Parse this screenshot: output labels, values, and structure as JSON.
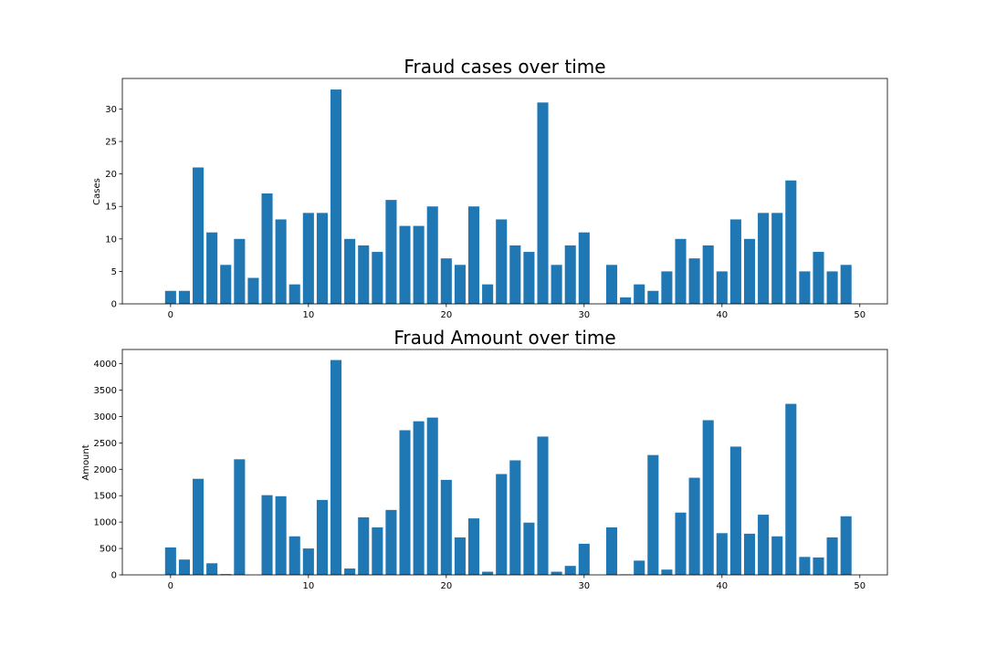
{
  "chart_data": [
    {
      "type": "bar",
      "title": "Fraud cases over time",
      "xlabel": "",
      "ylabel": "Cases",
      "xlim": [
        -3.5,
        52
      ],
      "ylim": [
        0,
        34.7
      ],
      "xticks": [
        0,
        10,
        20,
        30,
        40,
        50
      ],
      "yticks": [
        0,
        5,
        10,
        15,
        20,
        25,
        30
      ],
      "grid": false,
      "color": "#1f77b4",
      "x": [
        0,
        1,
        2,
        3,
        4,
        5,
        6,
        7,
        8,
        9,
        10,
        11,
        12,
        13,
        14,
        15,
        16,
        17,
        18,
        19,
        20,
        21,
        22,
        23,
        24,
        25,
        26,
        27,
        28,
        29,
        30,
        31,
        32,
        33,
        34,
        35,
        36,
        37,
        38,
        39,
        40,
        41,
        42,
        43,
        44,
        45,
        46,
        47,
        48,
        49
      ],
      "values": [
        2,
        2,
        21,
        11,
        6,
        10,
        4,
        17,
        13,
        3,
        14,
        14,
        33,
        10,
        9,
        8,
        16,
        12,
        12,
        15,
        7,
        6,
        15,
        3,
        13,
        9,
        8,
        31,
        6,
        9,
        11,
        0,
        6,
        1,
        3,
        2,
        5,
        10,
        7,
        9,
        5,
        13,
        10,
        14,
        14,
        19,
        5,
        8,
        5,
        6
      ]
    },
    {
      "type": "bar",
      "title": "Fraud Amount over time",
      "xlabel": "",
      "ylabel": "Amount",
      "xlim": [
        -3.5,
        52
      ],
      "ylim": [
        0,
        4270
      ],
      "xticks": [
        0,
        10,
        20,
        30,
        40,
        50
      ],
      "yticks": [
        0,
        500,
        1000,
        1500,
        2000,
        2500,
        3000,
        3500,
        4000
      ],
      "grid": false,
      "color": "#1f77b4",
      "x": [
        0,
        1,
        2,
        3,
        4,
        5,
        6,
        7,
        8,
        9,
        10,
        11,
        12,
        13,
        14,
        15,
        16,
        17,
        18,
        19,
        20,
        21,
        22,
        23,
        24,
        25,
        26,
        27,
        28,
        29,
        30,
        31,
        32,
        33,
        34,
        35,
        36,
        37,
        38,
        39,
        40,
        41,
        42,
        43,
        44,
        45,
        46,
        47,
        48,
        49
      ],
      "values": [
        520,
        290,
        1820,
        220,
        15,
        2190,
        0,
        1510,
        1490,
        730,
        500,
        1420,
        4070,
        120,
        1090,
        900,
        1230,
        2740,
        2910,
        2980,
        1800,
        710,
        1070,
        60,
        1910,
        2170,
        990,
        2620,
        60,
        170,
        590,
        0,
        900,
        10,
        270,
        2270,
        100,
        1180,
        1840,
        2930,
        790,
        2430,
        780,
        1140,
        730,
        3240,
        340,
        330,
        710,
        1110
      ]
    }
  ]
}
